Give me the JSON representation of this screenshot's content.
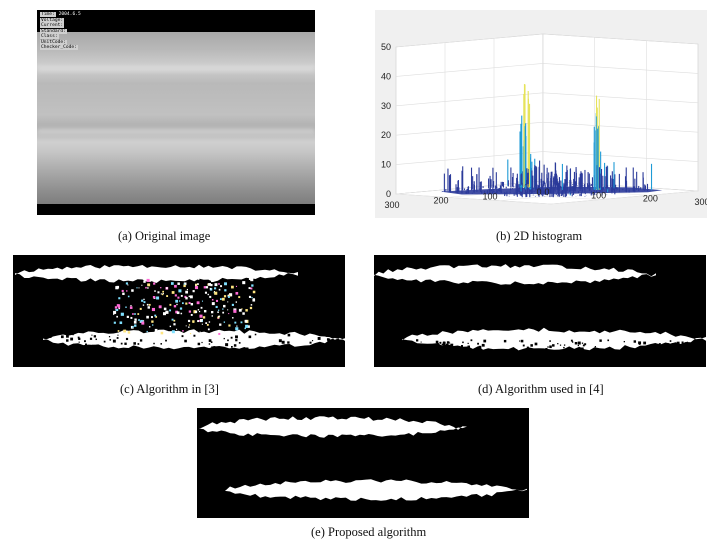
{
  "panel_a": {
    "caption": "(a) Original image",
    "overlay": [
      {
        "label": "Time:",
        "value": "2004.6.5"
      },
      {
        "label": "Voltage:",
        "value": ""
      },
      {
        "label": "Current:",
        "value": ""
      },
      {
        "label": "Standard:",
        "value": ""
      },
      {
        "label": "Class:",
        "value": ""
      },
      {
        "label": "UnitCode:",
        "value": ""
      },
      {
        "label": "Checker_Code:",
        "value": ""
      }
    ]
  },
  "panel_b": {
    "caption": "(b) 2D histogram",
    "chart_data": {
      "type": "surface3d",
      "title": "",
      "z_ticks": [
        "0",
        "10",
        "20",
        "30",
        "40",
        "50"
      ],
      "zlim": [
        0,
        50
      ],
      "x_ticks": [
        "300",
        "200",
        "100",
        "0"
      ],
      "y_ticks": [
        "0",
        "100",
        "200",
        "300"
      ],
      "xlim": [
        0,
        300
      ],
      "ylim": [
        0,
        300
      ],
      "peaks": [
        {
          "x": 100,
          "y": 60,
          "z": 35
        },
        {
          "x": 70,
          "y": 170,
          "z": 32
        },
        {
          "x": 120,
          "y": 90,
          "z": 12
        }
      ],
      "colors": {
        "low": "#2b3a9a",
        "mid": "#1f9bd6",
        "high": "#e6e35a",
        "pane": "#ffffff",
        "frame": "#f0f0f0"
      }
    }
  },
  "panel_c": {
    "caption": "(c) Algorithm in [3]"
  },
  "panel_d": {
    "caption": "(d) Algorithm used in [4]"
  },
  "panel_e": {
    "caption": "(e) Proposed algorithm"
  }
}
